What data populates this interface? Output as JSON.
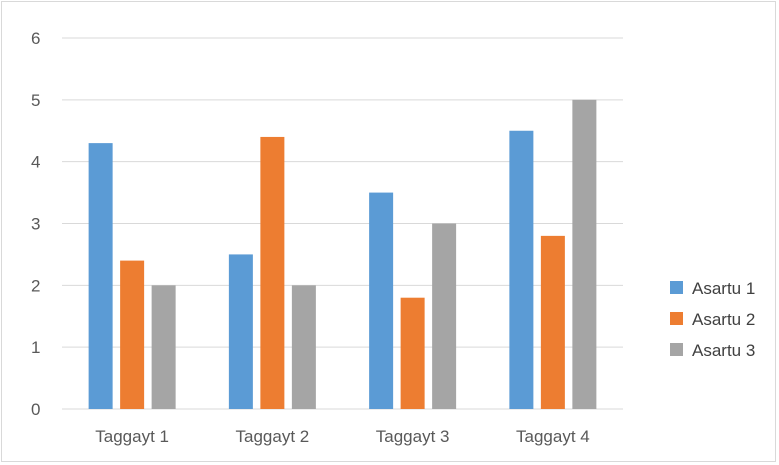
{
  "chart_data": {
    "type": "bar",
    "title": "",
    "xlabel": "",
    "ylabel": "",
    "categories": [
      "Taggayt 1",
      "Taggayt 2",
      "Taggayt 3",
      "Taggayt 4"
    ],
    "series": [
      {
        "name": "Asartu 1",
        "values": [
          4.3,
          2.5,
          3.5,
          4.5
        ],
        "color": "#5b9bd5"
      },
      {
        "name": "Asartu 2",
        "values": [
          2.4,
          4.4,
          1.8,
          2.8
        ],
        "color": "#ed7d31"
      },
      {
        "name": "Asartu 3",
        "values": [
          2.0,
          2.0,
          3.0,
          5.0
        ],
        "color": "#a5a5a5"
      }
    ],
    "ylim": [
      0,
      6
    ],
    "yticks": [
      0,
      1,
      2,
      3,
      4,
      5,
      6
    ],
    "grid": true,
    "gridline_color": "#d9d9d9",
    "legend_position": "right"
  }
}
